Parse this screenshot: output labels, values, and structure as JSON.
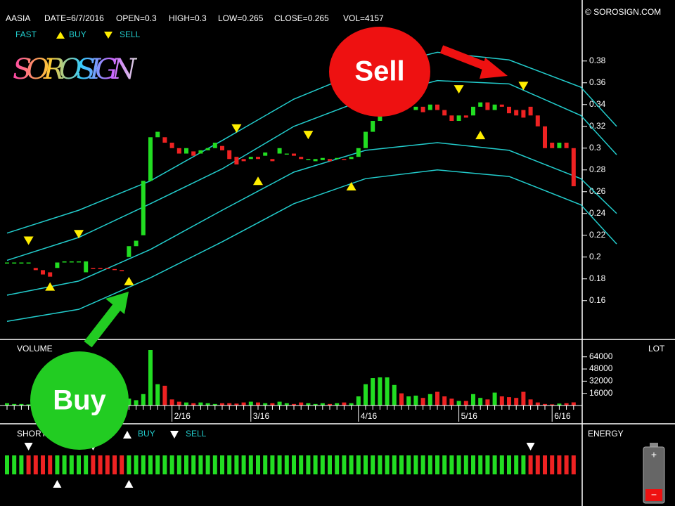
{
  "header": {
    "symbol": "AASIA",
    "date": "DATE=6/7/2016",
    "open": "OPEN=0.3",
    "high": "HIGH=0.3",
    "low": "LOW=0.265",
    "close": "CLOSE=0.265",
    "vol": "VOL=4157",
    "copyright": "© SOROSIGN.COM",
    "logo": "SOROSIGN",
    "legend_fast": "FAST",
    "legend_buy": "BUY",
    "legend_sell": "SELL"
  },
  "chart_data": [
    {
      "type": "candlestick",
      "up_color": "#22dd22",
      "down_color": "#ee2222",
      "band_color": "#22cccc",
      "signal_color": "#ffee00",
      "categories": [
        null,
        null,
        null,
        null,
        null,
        null,
        null,
        null,
        null,
        null,
        null,
        null,
        null,
        null,
        null,
        null,
        null,
        null,
        null,
        null,
        null,
        null,
        null,
        "2/16",
        null,
        null,
        null,
        null,
        null,
        null,
        null,
        null,
        null,
        null,
        "3/16",
        null,
        null,
        null,
        null,
        null,
        null,
        null,
        null,
        null,
        null,
        null,
        null,
        null,
        null,
        "4/16",
        null,
        null,
        null,
        null,
        null,
        null,
        null,
        null,
        null,
        null,
        null,
        null,
        null,
        "5/16",
        null,
        null,
        null,
        null,
        null,
        null,
        null,
        null,
        null,
        null,
        null,
        null,
        "6/16",
        null,
        null,
        null
      ],
      "open": [
        0.195,
        0.195,
        0.195,
        0.195,
        0.19,
        0.188,
        0.186,
        0.19,
        0.195,
        0.196,
        0.196,
        0.186,
        0.19,
        0.19,
        0.19,
        0.189,
        0.188,
        0.2,
        0.21,
        0.22,
        0.27,
        0.31,
        0.31,
        0.305,
        0.3,
        0.295,
        0.297,
        0.295,
        0.298,
        0.3,
        0.302,
        0.298,
        0.292,
        0.29,
        0.29,
        0.292,
        0.293,
        0.29,
        0.295,
        0.295,
        0.295,
        0.292,
        0.29,
        0.288,
        0.289,
        0.29,
        0.29,
        0.29,
        0.29,
        0.292,
        0.3,
        0.315,
        0.325,
        0.33,
        0.335,
        0.338,
        0.34,
        0.335,
        0.338,
        0.335,
        0.34,
        0.335,
        0.33,
        0.325,
        0.33,
        0.33,
        0.338,
        0.342,
        0.335,
        0.34,
        0.338,
        0.335,
        0.335,
        0.338,
        0.33,
        0.32,
        0.305,
        0.3,
        0.305,
        0.3
      ],
      "close": [
        0.195,
        0.195,
        0.195,
        0.195,
        0.188,
        0.184,
        0.182,
        0.195,
        0.196,
        0.196,
        0.196,
        0.196,
        0.189,
        0.189,
        0.189,
        0.188,
        0.187,
        0.21,
        0.215,
        0.27,
        0.31,
        0.315,
        0.305,
        0.3,
        0.295,
        0.3,
        0.293,
        0.298,
        0.3,
        0.305,
        0.298,
        0.29,
        0.285,
        0.288,
        0.292,
        0.29,
        0.296,
        0.288,
        0.3,
        0.295,
        0.293,
        0.29,
        0.29,
        0.29,
        0.291,
        0.288,
        0.291,
        0.289,
        0.292,
        0.3,
        0.315,
        0.325,
        0.33,
        0.335,
        0.338,
        0.335,
        0.342,
        0.338,
        0.333,
        0.34,
        0.335,
        0.33,
        0.325,
        0.33,
        0.328,
        0.338,
        0.342,
        0.335,
        0.34,
        0.338,
        0.332,
        0.33,
        0.328,
        0.33,
        0.32,
        0.3,
        0.3,
        0.305,
        0.3,
        0.265
      ],
      "bands": [
        {
          "x": [
            0,
            10,
            20,
            30,
            40,
            50,
            60,
            70,
            80,
            85
          ],
          "values": [
            0.222,
            0.243,
            0.27,
            0.307,
            0.345,
            0.372,
            0.388,
            0.381,
            0.356,
            0.32
          ]
        },
        {
          "x": [
            0,
            10,
            20,
            30,
            40,
            50,
            60,
            70,
            80,
            85
          ],
          "values": [
            0.197,
            0.218,
            0.249,
            0.281,
            0.32,
            0.345,
            0.362,
            0.359,
            0.33,
            0.294
          ]
        },
        {
          "x": [
            0,
            10,
            20,
            30,
            40,
            50,
            60,
            70,
            80,
            85
          ],
          "values": [
            0.165,
            0.178,
            0.207,
            0.243,
            0.278,
            0.298,
            0.305,
            0.298,
            0.272,
            0.24
          ]
        },
        {
          "x": [
            0,
            10,
            20,
            30,
            40,
            50,
            60,
            70,
            80,
            85
          ],
          "values": [
            0.141,
            0.152,
            0.181,
            0.214,
            0.249,
            0.272,
            0.28,
            0.274,
            0.248,
            0.212
          ]
        }
      ],
      "sell_signals": {
        "x": [
          3,
          10,
          32,
          42,
          63,
          72
        ],
        "values": [
          0.215,
          0.221,
          0.318,
          0.312,
          0.354,
          0.357
        ]
      },
      "buy_signals": {
        "x": [
          6,
          17,
          35,
          48,
          66
        ],
        "values": [
          0.173,
          0.178,
          0.27,
          0.265,
          0.312
        ]
      },
      "ylim": [
        0.125,
        0.436
      ],
      "yticks": [
        0.16,
        0.18,
        0.2,
        0.22,
        0.24,
        0.26,
        0.28,
        0.3,
        0.32,
        0.34,
        0.36,
        0.38
      ],
      "annotations": {
        "buy": "Buy",
        "sell": "Sell"
      }
    },
    {
      "type": "bar",
      "title": "VOLUME",
      "unit_label": "LOT",
      "values": [
        3000,
        2000,
        2000,
        1500,
        4000,
        3000,
        2500,
        6000,
        3000,
        2000,
        2000,
        8000,
        2000,
        2000,
        1500,
        1500,
        2000,
        9000,
        7000,
        15000,
        73000,
        28000,
        26000,
        8000,
        5000,
        4000,
        3000,
        4000,
        3000,
        2000,
        3000,
        3000,
        2500,
        4000,
        5000,
        4000,
        3000,
        3000,
        5000,
        3000,
        2000,
        4000,
        3000,
        2000,
        3000,
        2000,
        3000,
        4000,
        3000,
        12000,
        28000,
        36000,
        37000,
        37000,
        27000,
        16000,
        12000,
        13000,
        10000,
        15000,
        18000,
        12000,
        9000,
        6000,
        6000,
        15000,
        10000,
        8000,
        17000,
        12000,
        11000,
        10000,
        18000,
        8000,
        4000,
        2000,
        1500,
        2500,
        3000,
        4157
      ],
      "ylim": [
        0,
        85000
      ],
      "yticks": [
        16000,
        32000,
        48000,
        64000
      ]
    },
    {
      "type": "energy",
      "title": "SHORT",
      "right_title": "ENERGY",
      "legend_buy": "BUY",
      "legend_sell": "SELL",
      "segments": [
        {
          "start": 0,
          "end": 2,
          "color": "#22dd22"
        },
        {
          "start": 3,
          "end": 6,
          "color": "#ee2222"
        },
        {
          "start": 7,
          "end": 11,
          "color": "#22dd22"
        },
        {
          "start": 12,
          "end": 16,
          "color": "#ee2222"
        },
        {
          "start": 17,
          "end": 72,
          "color": "#22dd22"
        },
        {
          "start": 73,
          "end": 79,
          "color": "#ee2222"
        }
      ],
      "sell_signals": [
        3,
        12,
        73
      ],
      "buy_signals": [
        7,
        17
      ]
    }
  ]
}
